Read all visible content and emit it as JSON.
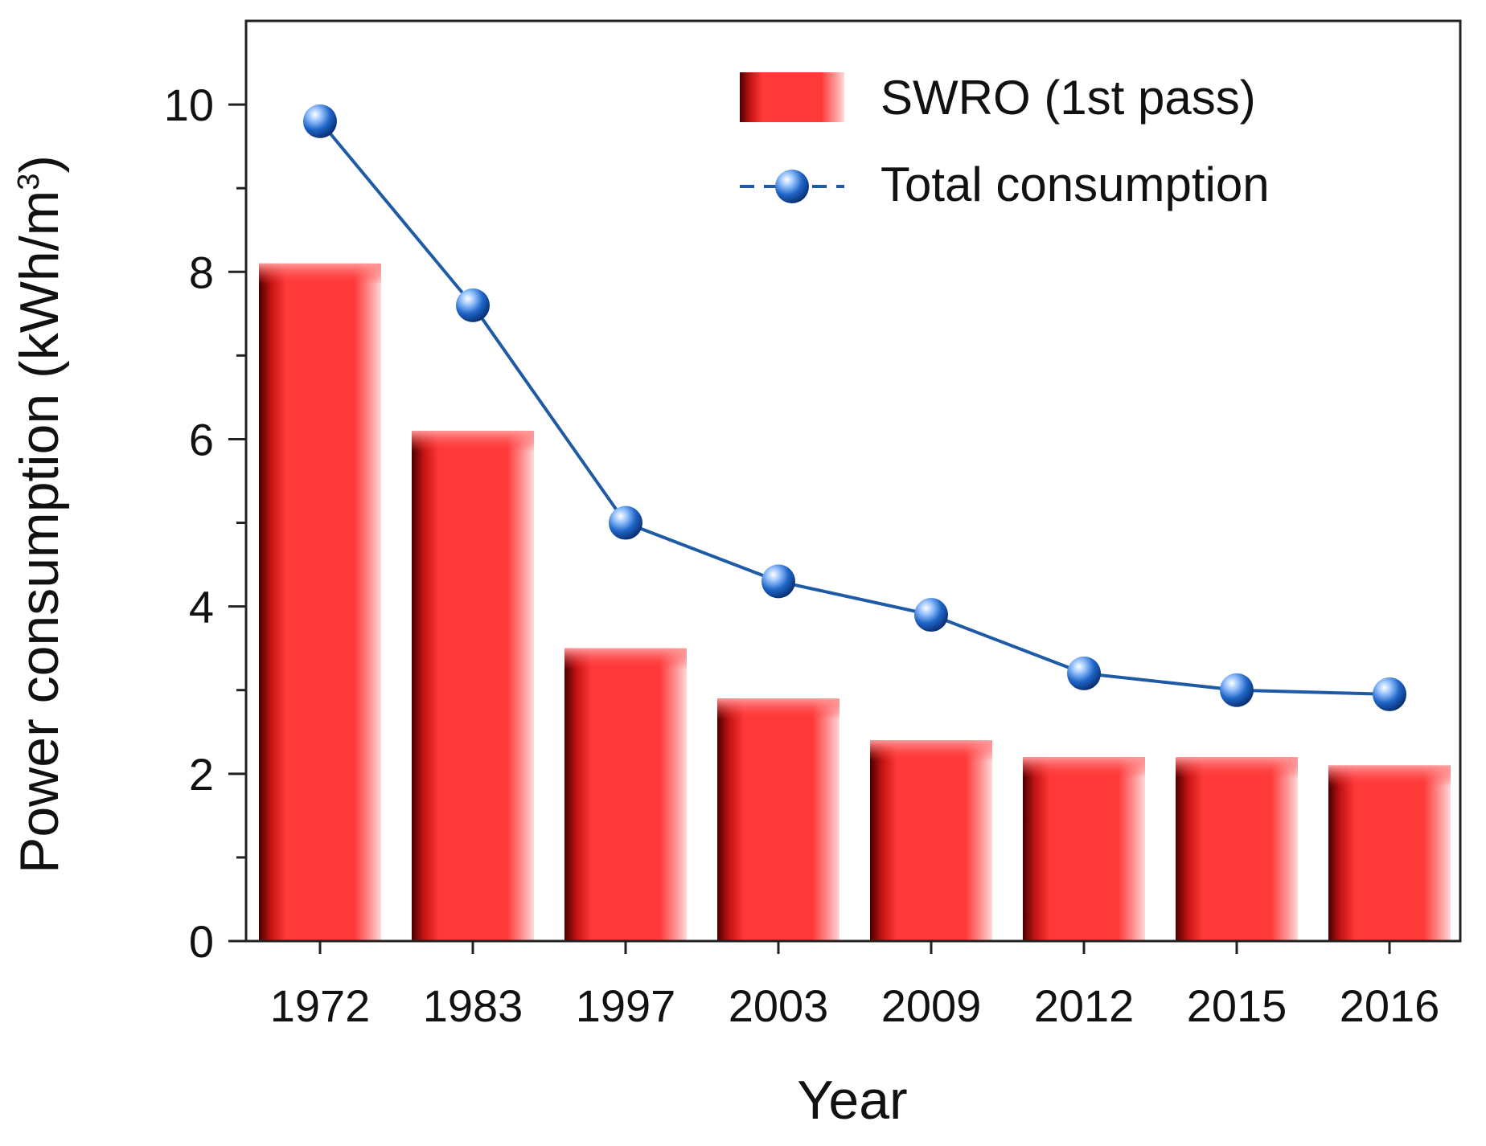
{
  "chart_data": {
    "type": "bar",
    "categories": [
      "1972",
      "1983",
      "1997",
      "2003",
      "2009",
      "2012",
      "2015",
      "2016"
    ],
    "series": [
      {
        "name": "SWRO (1st pass)",
        "kind": "bar",
        "values": [
          8.1,
          6.1,
          3.5,
          2.9,
          2.4,
          2.2,
          2.2,
          2.1
        ]
      },
      {
        "name": "Total consumption",
        "kind": "line",
        "values": [
          9.8,
          7.6,
          5.0,
          4.3,
          3.9,
          3.2,
          3.0,
          2.95
        ]
      }
    ],
    "xlabel": "Year",
    "ylabel_main": "Power consumption (kWh/m",
    "ylabel_sup": "3",
    "ylabel_close": ")",
    "ylim": [
      0,
      11
    ],
    "yticks": [
      0,
      2,
      4,
      6,
      8,
      10
    ],
    "legend_position": "top-right",
    "colors": {
      "bar": "#ff3838",
      "line": "#1f5aa6",
      "marker": "#1f66c8"
    }
  }
}
